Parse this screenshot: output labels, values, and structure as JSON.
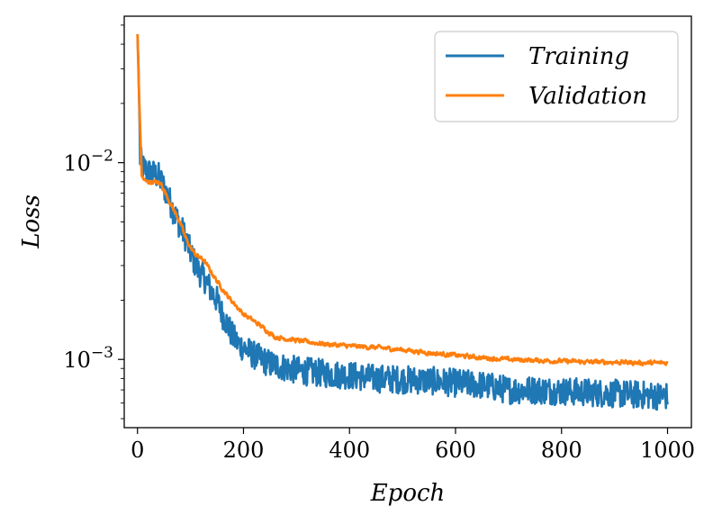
{
  "chart_data": {
    "type": "line",
    "xlabel": "Epoch",
    "ylabel": "Loss",
    "xlim": [
      -25,
      1045
    ],
    "ylim": [
      0.00045,
      0.0555
    ],
    "yscale": "log",
    "grid": false,
    "legend_position": "top-right",
    "x_ticks": [
      {
        "value": 0,
        "label": "0"
      },
      {
        "value": 200,
        "label": "200"
      },
      {
        "value": 400,
        "label": "400"
      },
      {
        "value": 600,
        "label": "600"
      },
      {
        "value": 800,
        "label": "800"
      },
      {
        "value": 1000,
        "label": "1000"
      }
    ],
    "y_ticks": [
      {
        "value": 0.01,
        "base": "10",
        "exp": "−2"
      },
      {
        "value": 0.001,
        "base": "10",
        "exp": "−3"
      }
    ],
    "series": [
      {
        "name": "Training",
        "color": "#1f77b4",
        "noise": 0.16,
        "x": [
          0,
          2,
          5,
          10,
          20,
          30,
          40,
          50,
          60,
          70,
          80,
          90,
          100,
          110,
          120,
          130,
          140,
          150,
          160,
          170,
          180,
          190,
          200,
          220,
          250,
          300,
          350,
          400,
          450,
          500,
          550,
          600,
          650,
          700,
          750,
          800,
          850,
          900,
          950,
          1000
        ],
        "y": [
          0.045,
          0.03,
          0.0105,
          0.0095,
          0.009,
          0.0088,
          0.0085,
          0.0075,
          0.0065,
          0.0055,
          0.0048,
          0.0042,
          0.0035,
          0.003,
          0.0027,
          0.0025,
          0.0022,
          0.002,
          0.0017,
          0.0015,
          0.0013,
          0.0012,
          0.00115,
          0.00105,
          0.00095,
          0.00088,
          0.00085,
          0.00083,
          0.0008,
          0.00079,
          0.00078,
          0.00076,
          0.00074,
          0.0007,
          0.0007,
          0.00069,
          0.00068,
          0.00067,
          0.00066,
          0.00065
        ]
      },
      {
        "name": "Validation",
        "color": "#ff7f0e",
        "noise": 0.04,
        "x": [
          0,
          3,
          8,
          15,
          30,
          45,
          55,
          65,
          80,
          90,
          100,
          110,
          125,
          135,
          150,
          170,
          200,
          230,
          260,
          300,
          350,
          400,
          450,
          500,
          550,
          600,
          650,
          700,
          750,
          800,
          850,
          900,
          950,
          1000
        ],
        "y": [
          0.045,
          0.022,
          0.0085,
          0.008,
          0.008,
          0.0078,
          0.0068,
          0.006,
          0.005,
          0.0042,
          0.0037,
          0.0034,
          0.0032,
          0.0029,
          0.0025,
          0.0021,
          0.0017,
          0.0015,
          0.0013,
          0.00125,
          0.0012,
          0.00117,
          0.00115,
          0.00112,
          0.00108,
          0.00105,
          0.00102,
          0.001,
          0.00099,
          0.00098,
          0.00097,
          0.00097,
          0.00096,
          0.00096
        ]
      }
    ]
  }
}
